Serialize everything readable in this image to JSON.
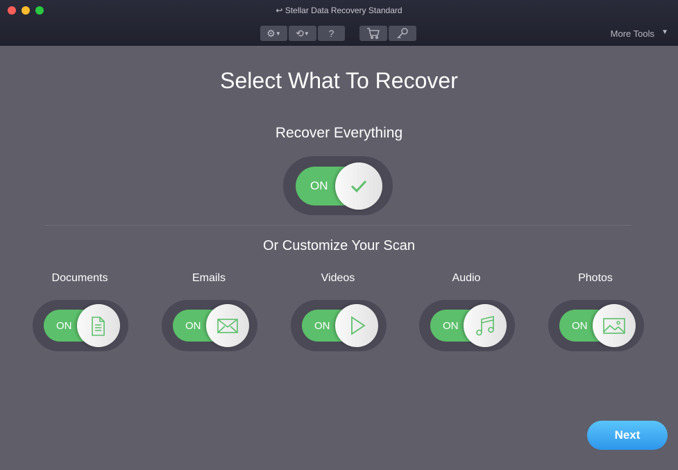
{
  "window": {
    "title": "Stellar Data Recovery Standard"
  },
  "toolbar": {
    "help": "?",
    "more_tools": "More Tools"
  },
  "main": {
    "heading": "Select What To Recover",
    "recover_everything": {
      "label": "Recover Everything",
      "state": "ON"
    },
    "customize_heading": "Or Customize Your Scan",
    "categories": [
      {
        "label": "Documents",
        "state": "ON",
        "icon": "document-icon"
      },
      {
        "label": "Emails",
        "state": "ON",
        "icon": "envelope-icon"
      },
      {
        "label": "Videos",
        "state": "ON",
        "icon": "play-icon"
      },
      {
        "label": "Audio",
        "state": "ON",
        "icon": "music-note-icon"
      },
      {
        "label": "Photos",
        "state": "ON",
        "icon": "image-icon"
      }
    ],
    "next_label": "Next"
  },
  "colors": {
    "accent_green": "#5cbf6b",
    "next_blue": "#3aa7ee",
    "background": "#5f5e69"
  }
}
